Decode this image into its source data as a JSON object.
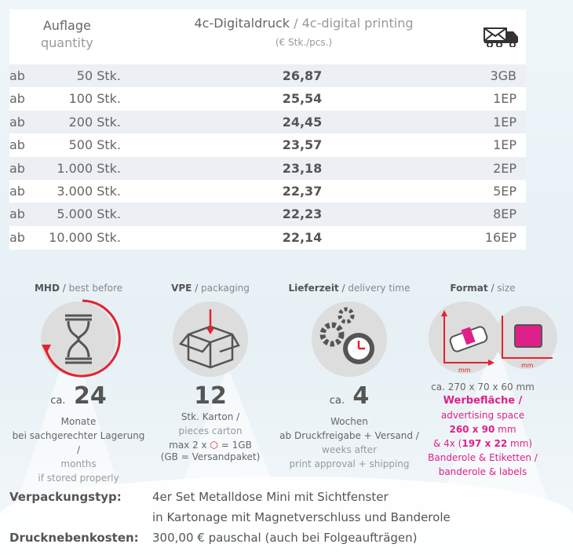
{
  "table": {
    "header": {
      "quantity_de": "Auflage",
      "quantity_en": "quantity",
      "price_de": "4c-Digitaldruck",
      "price_sep": " / ",
      "price_en": "4c-digital printing",
      "price_unit": "(€ Stk./pcs.)",
      "shipping_icon": "mail-truck-icon"
    },
    "rows": [
      {
        "prefix": "ab",
        "qty": "50 Stk.",
        "price": "26,87",
        "ship": "3GB"
      },
      {
        "prefix": "ab",
        "qty": "100 Stk.",
        "price": "25,54",
        "ship": "1EP"
      },
      {
        "prefix": "ab",
        "qty": "200 Stk.",
        "price": "24,45",
        "ship": "1EP"
      },
      {
        "prefix": "ab",
        "qty": "500 Stk.",
        "price": "23,57",
        "ship": "1EP"
      },
      {
        "prefix": "ab",
        "qty": "1.000 Stk.",
        "price": "23,18",
        "ship": "2EP"
      },
      {
        "prefix": "ab",
        "qty": "3.000 Stk.",
        "price": "22,37",
        "ship": "5EP"
      },
      {
        "prefix": "ab",
        "qty": "5.000 Stk.",
        "price": "22,23",
        "ship": "8EP"
      },
      {
        "prefix": "ab",
        "qty": "10.000 Stk.",
        "price": "22,14",
        "ship": "16EP"
      }
    ]
  },
  "features": {
    "mhd": {
      "title_de": "MHD",
      "title_en": "best before",
      "ca": "ca.",
      "value": "24",
      "l1": "Monate",
      "l2": "bei sachgerechter Lagerung /",
      "l3": "months",
      "l4": "if stored properly"
    },
    "vpe": {
      "title_de": "VPE",
      "title_en": "packaging",
      "value": "12",
      "l1": "Stk. Karton /",
      "l2": "pieces carton",
      "l3a": "max 2 x",
      "l3b": "= 1GB",
      "l4": "(GB = Versandpaket)"
    },
    "delivery": {
      "title_de": "Lieferzeit",
      "title_en": "delivery time",
      "ca": "ca.",
      "value": "4",
      "l1": "Wochen",
      "l2": "ab Druckfreigabe + Versand /",
      "l3": "weeks after",
      "l4": "print approval + shipping"
    },
    "format": {
      "title_de": "Format",
      "title_en": "size",
      "axis_unit": "mm",
      "dims": "ca. 270 x 70 x 60 mm",
      "l1": "Werbefläche /",
      "l2": "advertising space",
      "l3a": "260 x 90",
      "l3b": " mm",
      "l4a": "& 4x (",
      "l4b": "197 x 22",
      "l4c": " mm)",
      "l5": "Banderole & Etiketten /",
      "l6": "banderole & labels"
    }
  },
  "accent": "#e0208a",
  "bottom": {
    "type_label": "Verpackungstyp:",
    "type_l1": "4er Set Metalldose Mini mit Sichtfenster",
    "type_l2": "in Kartonage mit Magnetverschluss und Banderole",
    "costs_label": "Drucknebenkosten:",
    "costs_value": "300,00 € pauschal (auch bei Folgeaufträgen)"
  }
}
